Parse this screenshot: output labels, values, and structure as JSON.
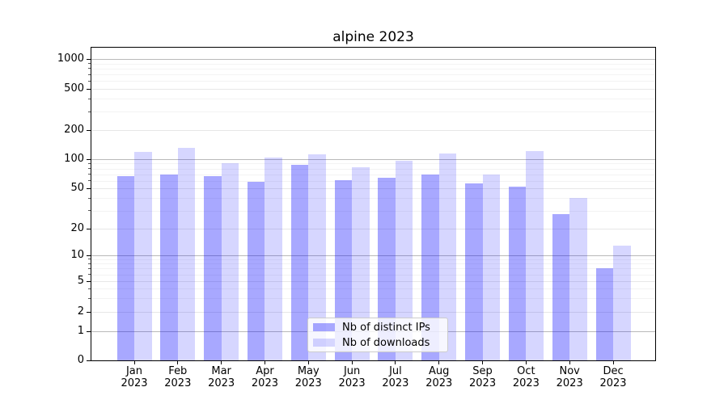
{
  "title": "alpine 2023",
  "colors": {
    "series_distinct_ips": "rgba(0,0,255,0.34)",
    "series_downloads": "rgba(0,0,255,0.16)",
    "major_grid": "#b9b9b9",
    "labeled_grid": "#e7e7e7",
    "minor_grid": "#f3f3f3",
    "spine": "#000000"
  },
  "chart_data": {
    "type": "bar",
    "title": "alpine 2023",
    "x_months": [
      "Jan",
      "Feb",
      "Mar",
      "Apr",
      "May",
      "Jun",
      "Jul",
      "Aug",
      "Sep",
      "Oct",
      "Nov",
      "Dec"
    ],
    "x_year_line": "2023",
    "categories": [
      "Jan 2023",
      "Feb 2023",
      "Mar 2023",
      "Apr 2023",
      "May 2023",
      "Jun 2023",
      "Jul 2023",
      "Aug 2023",
      "Sep 2023",
      "Oct 2023",
      "Nov 2023",
      "Dec 2023"
    ],
    "series": [
      {
        "name": "Nb of distinct IPs",
        "color": "rgba(0,0,255,0.34)",
        "values": [
          67,
          69,
          67,
          58,
          87,
          61,
          64,
          69,
          56,
          52,
          28,
          7
        ]
      },
      {
        "name": "Nb of downloads",
        "color": "rgba(0,0,255,0.16)",
        "values": [
          118,
          131,
          91,
          103,
          113,
          82,
          96,
          114,
          69,
          121,
          40,
          13
        ]
      }
    ],
    "yscale": "log-with-zero-floor",
    "ytick_labels": [
      0,
      1,
      2,
      5,
      10,
      20,
      50,
      100,
      200,
      500,
      1000
    ],
    "minor_ticks": [
      3,
      4,
      6,
      7,
      8,
      9,
      30,
      40,
      60,
      70,
      80,
      90,
      300,
      400,
      600,
      700,
      800,
      900
    ],
    "ylim": [
      0,
      1300
    ],
    "grid": true,
    "legend_position": "lower center"
  }
}
